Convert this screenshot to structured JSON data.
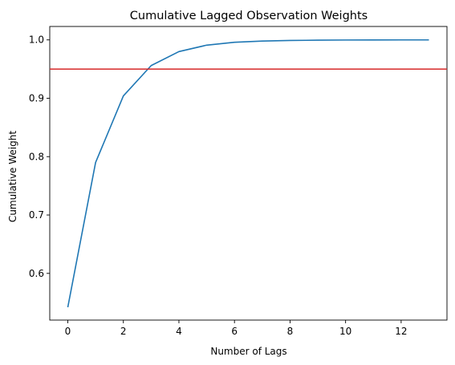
{
  "chart_data": {
    "type": "line",
    "title": "Cumulative Lagged Observation Weights",
    "xlabel": "Number of Lags",
    "ylabel": "Cumulative Weight",
    "xlim": [
      -0.65,
      13.65
    ],
    "ylim": [
      0.52,
      1.023
    ],
    "xticks": [
      0,
      2,
      4,
      6,
      8,
      10,
      12
    ],
    "xtick_labels": [
      "0",
      "2",
      "4",
      "6",
      "8",
      "10",
      "12"
    ],
    "yticks": [
      0.6,
      0.7,
      0.8,
      0.9,
      1.0
    ],
    "ytick_labels": [
      "0.6",
      "0.7",
      "0.8",
      "0.9",
      "1.0"
    ],
    "grid": false,
    "legend": "none",
    "series": [
      {
        "color": "#1f77b4",
        "x": [
          0,
          1,
          2,
          3,
          4,
          5,
          6,
          7,
          8,
          9,
          10,
          11,
          12,
          13
        ],
        "values": [
          0.542,
          0.79,
          0.904,
          0.956,
          0.98,
          0.991,
          0.996,
          0.998,
          0.999,
          0.9995,
          0.9998,
          0.9999,
          1.0,
          1.0
        ]
      }
    ],
    "reference_line": {
      "orientation": "horizontal",
      "y": 0.95,
      "color": "#d62728"
    }
  }
}
